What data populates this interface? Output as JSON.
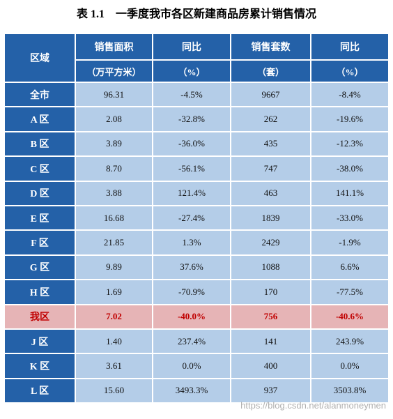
{
  "title": "表 1.1　一季度我市各区新建商品房累计销售情况",
  "table": {
    "region_header": "区域",
    "columns": [
      {
        "name": "销售面积",
        "unit": "（万平方米）"
      },
      {
        "name": "同比",
        "unit": "（%）"
      },
      {
        "name": "销售套数",
        "unit": "（套）"
      },
      {
        "name": "同比",
        "unit": "（%）"
      }
    ],
    "rows": [
      [
        "全市",
        "96.31",
        "-4.5%",
        "9667",
        "-8.4%"
      ],
      [
        "A 区",
        "2.08",
        "-32.8%",
        "262",
        "-19.6%"
      ],
      [
        "B 区",
        "3.89",
        "-36.0%",
        "435",
        "-12.3%"
      ],
      [
        "C 区",
        "8.70",
        "-56.1%",
        "747",
        "-38.0%"
      ],
      [
        "D 区",
        "3.88",
        "121.4%",
        "463",
        "141.1%"
      ],
      [
        "E 区",
        "16.68",
        "-27.4%",
        "1839",
        "-33.0%"
      ],
      [
        "F 区",
        "21.85",
        "1.3%",
        "2429",
        "-1.9%"
      ],
      [
        "G 区",
        "9.89",
        "37.6%",
        "1088",
        "6.6%"
      ],
      [
        "H 区",
        "1.69",
        "-70.9%",
        "170",
        "-77.5%"
      ],
      [
        "我区",
        "7.02",
        "-40.0%",
        "756",
        "-40.6%"
      ],
      [
        "J 区",
        "1.40",
        "237.4%",
        "141",
        "243.9%"
      ],
      [
        "K 区",
        "3.61",
        "0.0%",
        "400",
        "0.0%"
      ],
      [
        "L 区",
        "15.60",
        "3493.3%",
        "937",
        "3503.8%"
      ]
    ],
    "highlight_row": 9
  },
  "watermark": "https://blog.csdn.net/alanmoneymen"
}
